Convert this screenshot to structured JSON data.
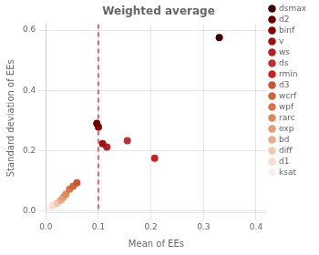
{
  "chart_data": {
    "type": "scatter",
    "title": "Weighted average",
    "xlabel": "Mean of EEs",
    "ylabel": "Standard deviation of EEs",
    "xlim": [
      0,
      0.42
    ],
    "ylim": [
      -0.005,
      0.62
    ],
    "xticks": [
      {
        "value": 0,
        "label": "0.0"
      },
      0.1,
      0.2,
      0.3,
      0.4
    ],
    "yticks": [
      {
        "value": 0,
        "label": "0.0"
      },
      0.2,
      0.4,
      0.6
    ],
    "grid": true,
    "legend": "right",
    "marker": "circle",
    "vline": {
      "x": 0.1,
      "color": "#ff0000",
      "line_style": "dashed"
    },
    "series": [
      {
        "name": "dsmax",
        "color": "#3d0000",
        "x": [
          0.33
        ],
        "values": [
          0.575
        ]
      },
      {
        "name": "d2",
        "color": "#6b0000",
        "x": [
          0.097
        ],
        "values": [
          0.29
        ]
      },
      {
        "name": "binf",
        "color": "#8b0000",
        "x": [
          0.1
        ],
        "values": [
          0.278
        ]
      },
      {
        "name": "v",
        "color": "#a01010",
        "x": [
          0.108
        ],
        "values": [
          0.223
        ]
      },
      {
        "name": "ws",
        "color": "#b52020",
        "x": [
          0.116
        ],
        "values": [
          0.212
        ]
      },
      {
        "name": "ds",
        "color": "#c03030",
        "x": [
          0.155
        ],
        "values": [
          0.233
        ]
      },
      {
        "name": "rmin",
        "color": "#cc2020",
        "x": [
          0.207
        ],
        "values": [
          0.175
        ]
      },
      {
        "name": "d3",
        "color": "#cc5530",
        "x": [
          0.059
        ],
        "values": [
          0.093
        ]
      },
      {
        "name": "wcrf",
        "color": "#d06535",
        "x": [
          0.052
        ],
        "values": [
          0.082
        ]
      },
      {
        "name": "wpf",
        "color": "#d97545",
        "x": [
          0.045
        ],
        "values": [
          0.072
        ]
      },
      {
        "name": "rarc",
        "color": "#e08858",
        "x": [
          0.038
        ],
        "values": [
          0.055
        ]
      },
      {
        "name": "exp",
        "color": "#e89a70",
        "x": [
          0.033
        ],
        "values": [
          0.045
        ]
      },
      {
        "name": "bd",
        "color": "#eeaa88",
        "x": [
          0.028
        ],
        "values": [
          0.035
        ]
      },
      {
        "name": "diff",
        "color": "#f2c8b0",
        "x": [
          0.022
        ],
        "values": [
          0.025
        ]
      },
      {
        "name": "d1",
        "color": "#f6dece",
        "x": [
          0.014
        ],
        "values": [
          0.018
        ]
      },
      {
        "name": "ksat",
        "color": "#faf0e8",
        "x": [
          0.007
        ],
        "values": [
          0.01
        ]
      }
    ]
  }
}
